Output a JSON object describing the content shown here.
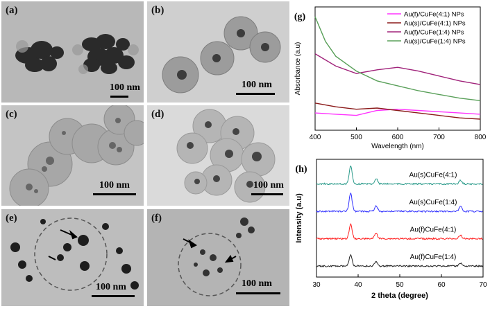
{
  "panels": [
    {
      "label": "(a)",
      "scale": "100 nm"
    },
    {
      "label": "(b)",
      "scale": "100 nm"
    },
    {
      "label": "(c)",
      "scale": "100 nm"
    },
    {
      "label": "(d)",
      "scale": "100 nm"
    },
    {
      "label": "(e)",
      "scale": "100 nm"
    },
    {
      "label": "(f)",
      "scale": "100 nm"
    }
  ],
  "colors": {
    "magenta": "#ff33ff",
    "darkred": "#8b1a1a",
    "purple": "#a0227a",
    "green": "#5aa05a",
    "teal": "#2a9a8a",
    "blue": "#3333ff",
    "red": "#ff2020",
    "black": "#222222"
  },
  "chart_data": [
    {
      "type": "line",
      "panel_label": "(g)",
      "xlabel": "Wavelength (nm)",
      "ylabel": "Absorbance (a.u)",
      "xlim": [
        400,
        800
      ],
      "xticks": [
        400,
        500,
        600,
        700,
        800
      ],
      "yticks_shown": false,
      "legend_position": "top-right",
      "series": [
        {
          "name": "Au(f)/CuFe(4:1) NPs",
          "color": "#ff33ff",
          "x": [
            400,
            450,
            500,
            550,
            600,
            650,
            700,
            750,
            800
          ],
          "y": [
            0.14,
            0.13,
            0.12,
            0.16,
            0.17,
            0.16,
            0.15,
            0.14,
            0.13
          ]
        },
        {
          "name": "Au(s)/CuFe(4:1) NPs",
          "color": "#8b1a1a",
          "x": [
            400,
            450,
            500,
            550,
            600,
            650,
            700,
            750,
            800
          ],
          "y": [
            0.22,
            0.19,
            0.17,
            0.18,
            0.16,
            0.14,
            0.12,
            0.1,
            0.09
          ]
        },
        {
          "name": "Au(f)/CuFe(1:4) NPs",
          "color": "#a0227a",
          "x": [
            400,
            450,
            500,
            550,
            600,
            650,
            700,
            750,
            800
          ],
          "y": [
            0.62,
            0.52,
            0.46,
            0.49,
            0.51,
            0.48,
            0.44,
            0.4,
            0.37
          ]
        },
        {
          "name": "Au(s)/CuFe(1:4) NPs",
          "color": "#5aa05a",
          "x": [
            400,
            425,
            450,
            500,
            550,
            600,
            650,
            700,
            750,
            800
          ],
          "y": [
            0.92,
            0.72,
            0.6,
            0.48,
            0.4,
            0.36,
            0.32,
            0.29,
            0.26,
            0.24
          ]
        }
      ]
    },
    {
      "type": "line",
      "panel_label": "(h)",
      "xlabel": "2 theta (degree)",
      "ylabel": "Intensity (a.u)",
      "xlim": [
        30,
        70
      ],
      "xticks": [
        30,
        40,
        50,
        60,
        70
      ],
      "yticks_shown": false,
      "series": [
        {
          "name": "Au(s)CuFe(4:1)",
          "color": "#2a9a8a",
          "peaks": [
            {
              "x": 38.2,
              "height": 1.0
            },
            {
              "x": 44.3,
              "height": 0.3
            },
            {
              "x": 64.6,
              "height": 0.2
            }
          ]
        },
        {
          "name": "Au(s)CuFe(1:4)",
          "color": "#3333ff",
          "peaks": [
            {
              "x": 38.2,
              "height": 1.0
            },
            {
              "x": 44.3,
              "height": 0.3
            },
            {
              "x": 64.6,
              "height": 0.25
            }
          ]
        },
        {
          "name": "Au(f)CuFe(4:1)",
          "color": "#ff2020",
          "peaks": [
            {
              "x": 38.2,
              "height": 0.8
            },
            {
              "x": 44.3,
              "height": 0.3
            },
            {
              "x": 64.6,
              "height": 0.2
            }
          ]
        },
        {
          "name": "Au(f)CuFe(1:4)",
          "color": "#222222",
          "peaks": [
            {
              "x": 38.2,
              "height": 0.6
            },
            {
              "x": 44.3,
              "height": 0.25
            },
            {
              "x": 64.6,
              "height": 0.18
            }
          ]
        }
      ]
    }
  ]
}
